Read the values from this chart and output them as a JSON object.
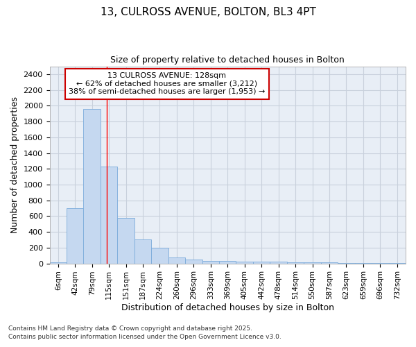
{
  "title_line1": "13, CULROSS AVENUE, BOLTON, BL3 4PT",
  "title_line2": "Size of property relative to detached houses in Bolton",
  "xlabel": "Distribution of detached houses by size in Bolton",
  "ylabel": "Number of detached properties",
  "categories": [
    "6sqm",
    "42sqm",
    "79sqm",
    "115sqm",
    "151sqm",
    "187sqm",
    "224sqm",
    "260sqm",
    "296sqm",
    "333sqm",
    "369sqm",
    "405sqm",
    "442sqm",
    "478sqm",
    "514sqm",
    "550sqm",
    "587sqm",
    "623sqm",
    "659sqm",
    "696sqm",
    "732sqm"
  ],
  "values": [
    15,
    700,
    1960,
    1230,
    575,
    305,
    195,
    80,
    45,
    35,
    35,
    20,
    20,
    25,
    15,
    15,
    10,
    5,
    5,
    5,
    5
  ],
  "bar_color": "#c5d8f0",
  "bar_edge_color": "#7aabdb",
  "bar_edge_width": 0.6,
  "grid_color": "#c8d0dc",
  "plot_bg_color": "#e8eef6",
  "figure_bg_color": "#ffffff",
  "ylim": [
    0,
    2500
  ],
  "yticks": [
    0,
    200,
    400,
    600,
    800,
    1000,
    1200,
    1400,
    1600,
    1800,
    2000,
    2200,
    2400
  ],
  "red_line_x": 3.37,
  "annotation_title": "13 CULROSS AVENUE: 128sqm",
  "annotation_line1": "← 62% of detached houses are smaller (3,212)",
  "annotation_line2": "38% of semi-detached houses are larger (1,953) →",
  "annotation_box_color": "#ffffff",
  "annotation_box_edge_color": "#cc0000",
  "footnote_line1": "Contains HM Land Registry data © Crown copyright and database right 2025.",
  "footnote_line2": "Contains public sector information licensed under the Open Government Licence v3.0."
}
